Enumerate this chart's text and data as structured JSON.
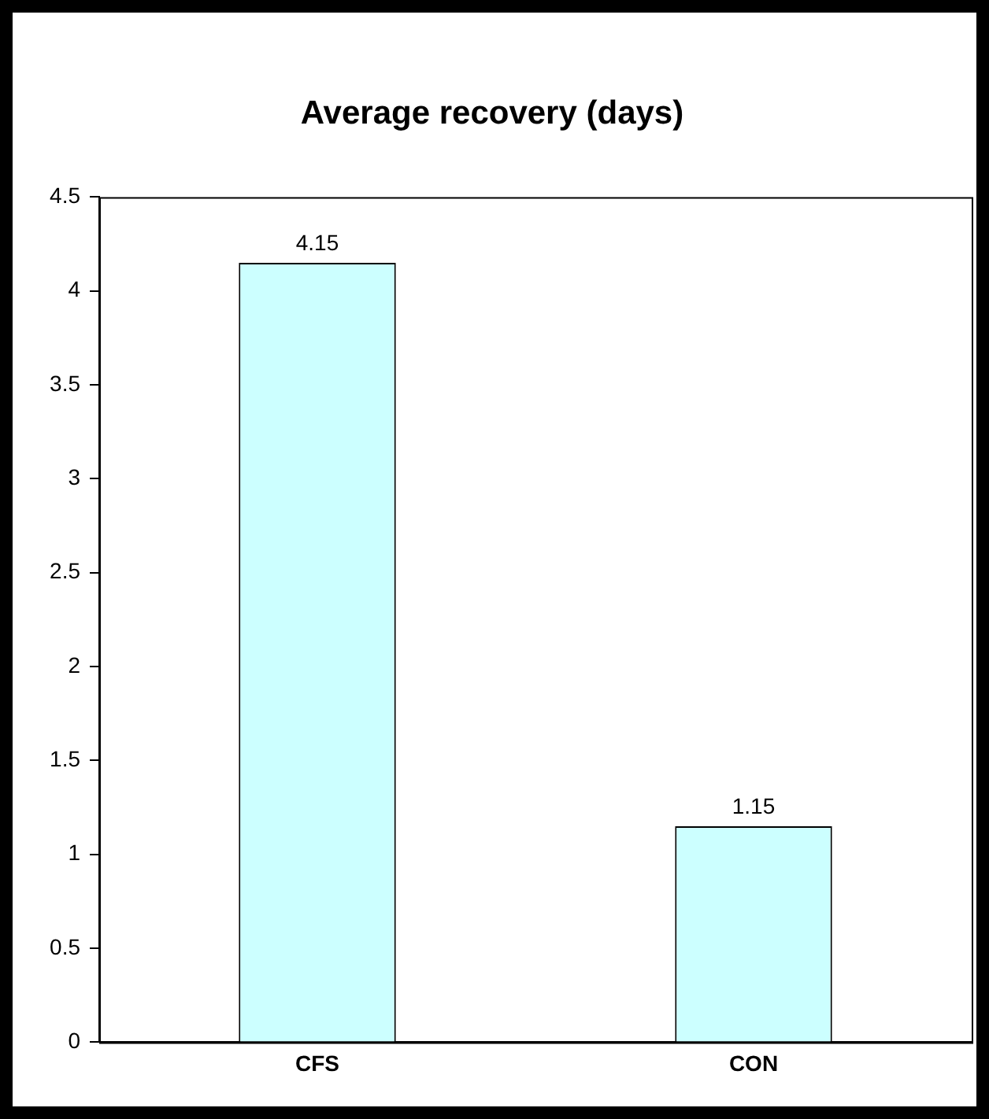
{
  "chart_data": {
    "type": "bar",
    "title": "Average recovery (days)",
    "categories": [
      "CFS",
      "CON"
    ],
    "values": [
      4.15,
      1.15
    ],
    "color": "#ccffff",
    "ylim": [
      0,
      4.5
    ],
    "yticks": [
      0,
      0.5,
      1,
      1.5,
      2,
      2.5,
      3,
      3.5,
      4,
      4.5
    ],
    "data_labels": true,
    "grid": false,
    "legend": false
  }
}
